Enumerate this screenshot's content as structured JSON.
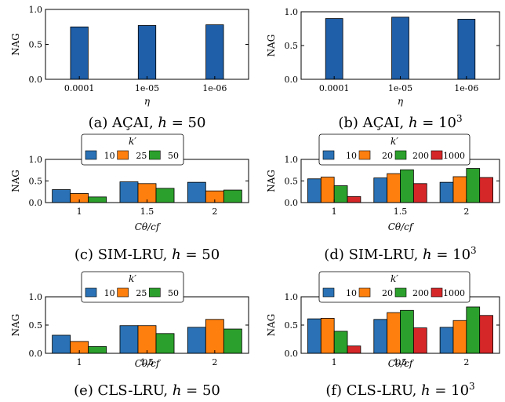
{
  "colors": {
    "acai_bar": "#1f5ea8",
    "blue": "#2a72b5",
    "orange": "#ff7f0e",
    "green": "#2ca02c",
    "red": "#d62728"
  },
  "chart_data": [
    {
      "type": "bar",
      "caption_prefix": "(a) AÇAI,",
      "caption_h": "h",
      "caption_eq": " = 50",
      "caption_sup": "",
      "ylabel": "NAG",
      "xlabel": "η",
      "ylim": [
        0,
        1
      ],
      "yticks": [
        "0.0",
        "0.5",
        "1.0"
      ],
      "categories": [
        "0.0001",
        "1e-05",
        "1e-06"
      ],
      "legend": null,
      "series": [
        {
          "color": "acai_bar",
          "values": [
            0.75,
            0.77,
            0.78
          ]
        }
      ]
    },
    {
      "type": "bar",
      "caption_prefix": "(b) AÇAI,",
      "caption_h": "h",
      "caption_eq": " = 10",
      "caption_sup": "3",
      "ylabel": "NAG",
      "xlabel": "η",
      "ylim": [
        0,
        1
      ],
      "yticks": [
        "0.0",
        "0.5",
        "1.0"
      ],
      "categories": [
        "0.0001",
        "1e-05",
        "1e-06"
      ],
      "legend": null,
      "series": [
        {
          "color": "acai_bar",
          "values": [
            0.9,
            0.92,
            0.89
          ]
        }
      ]
    },
    {
      "type": "bar",
      "caption_prefix": "(c) SIM-LRU,",
      "caption_h": "h",
      "caption_eq": " = 50",
      "caption_sup": "",
      "ylabel": "NAG",
      "xlabel": "Cθ/cf",
      "ylim": [
        0,
        1
      ],
      "yticks": [
        "0.0",
        "0.5",
        "1.0"
      ],
      "categories": [
        "1",
        "1.5",
        "2"
      ],
      "legend": {
        "title": "k′"
      },
      "series": [
        {
          "name": "10",
          "color": "blue",
          "values": [
            0.3,
            0.48,
            0.47
          ]
        },
        {
          "name": "25",
          "color": "orange",
          "values": [
            0.21,
            0.44,
            0.27
          ]
        },
        {
          "name": "50",
          "color": "green",
          "values": [
            0.13,
            0.33,
            0.29
          ]
        }
      ]
    },
    {
      "type": "bar",
      "caption_prefix": "(d) SIM-LRU,",
      "caption_h": "h",
      "caption_eq": " = 10",
      "caption_sup": "3",
      "ylabel": "NAG",
      "xlabel": "Cθ/cf",
      "ylim": [
        0,
        1
      ],
      "yticks": [
        "0.0",
        "0.5",
        "1.0"
      ],
      "categories": [
        "1",
        "1.5",
        "2"
      ],
      "legend": {
        "title": "k′"
      },
      "series": [
        {
          "name": "10",
          "color": "blue",
          "values": [
            0.55,
            0.57,
            0.47
          ]
        },
        {
          "name": "20",
          "color": "orange",
          "values": [
            0.59,
            0.67,
            0.6
          ]
        },
        {
          "name": "200",
          "color": "green",
          "values": [
            0.39,
            0.76,
            0.79
          ]
        },
        {
          "name": "1000",
          "color": "red",
          "values": [
            0.14,
            0.44,
            0.58
          ]
        }
      ]
    },
    {
      "type": "bar",
      "caption_prefix": "(e) CLS-LRU,",
      "caption_h": "h",
      "caption_eq": " = 50",
      "caption_sup": "",
      "ylabel": "NAG",
      "xlabel": "Cθ/cf",
      "ylim": [
        0,
        1
      ],
      "yticks": [
        "0.0",
        "0.5",
        "1.0"
      ],
      "categories": [
        "1",
        "1.5",
        "2"
      ],
      "legend": {
        "title": "k′"
      },
      "series": [
        {
          "name": "10",
          "color": "blue",
          "values": [
            0.32,
            0.49,
            0.46
          ]
        },
        {
          "name": "25",
          "color": "orange",
          "values": [
            0.21,
            0.49,
            0.6
          ]
        },
        {
          "name": "50",
          "color": "green",
          "values": [
            0.12,
            0.35,
            0.43
          ]
        }
      ]
    },
    {
      "type": "bar",
      "caption_prefix": "(f) CLS-LRU,",
      "caption_h": "h",
      "caption_eq": " = 10",
      "caption_sup": "3",
      "ylabel": "NAG",
      "xlabel": "Cθ/cf",
      "ylim": [
        0,
        1
      ],
      "yticks": [
        "0.0",
        "0.5",
        "1.0"
      ],
      "categories": [
        "1",
        "1.5",
        "2"
      ],
      "legend": {
        "title": "k′"
      },
      "series": [
        {
          "name": "10",
          "color": "blue",
          "values": [
            0.61,
            0.6,
            0.46
          ]
        },
        {
          "name": "20",
          "color": "orange",
          "values": [
            0.62,
            0.72,
            0.58
          ]
        },
        {
          "name": "200",
          "color": "green",
          "values": [
            0.39,
            0.76,
            0.82
          ]
        },
        {
          "name": "1000",
          "color": "red",
          "values": [
            0.13,
            0.45,
            0.67
          ]
        }
      ]
    }
  ]
}
